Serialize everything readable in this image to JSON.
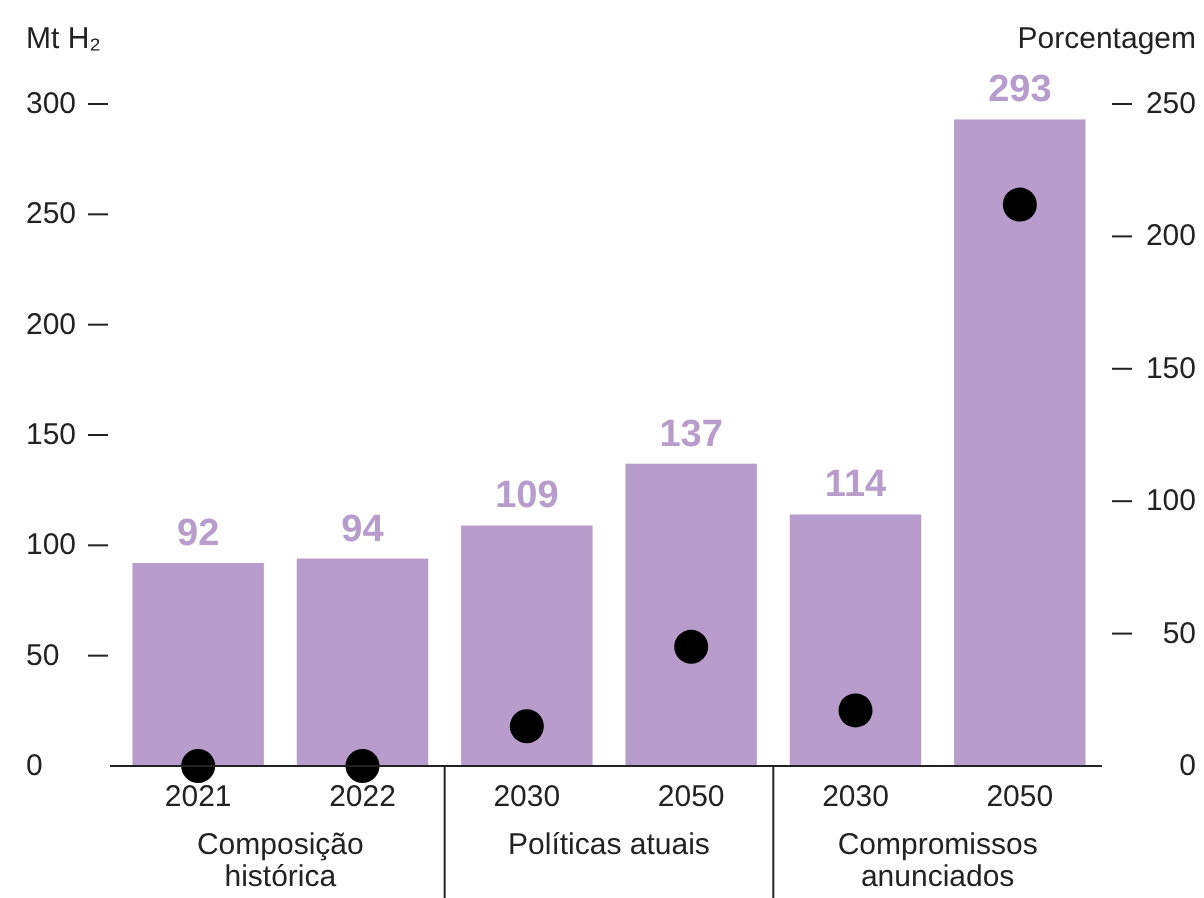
{
  "chart_data": {
    "type": "bar",
    "ylabel": "Mt H₂",
    "y2label": "Porcentagem",
    "categories": [
      "2021",
      "2022",
      "2030",
      "2050",
      "2030",
      "2050"
    ],
    "series": [
      {
        "type": "bar",
        "color": "#b89ccb",
        "values": [
          92,
          94,
          109,
          137,
          114,
          293
        ],
        "value_labels": [
          "92",
          "94",
          "109",
          "137",
          "114",
          "293"
        ]
      },
      {
        "type": "scatter",
        "color": "#000000",
        "axis": "y2",
        "values": [
          0,
          0,
          15,
          45,
          21,
          212
        ]
      }
    ],
    "ylim": [
      0,
      300
    ],
    "yticks": [
      0,
      50,
      100,
      150,
      200,
      250,
      300
    ],
    "y2lim": [
      0,
      250
    ],
    "y2ticks": [
      0,
      50,
      100,
      150,
      200,
      250
    ],
    "marker": "circle",
    "grid": false,
    "annotations": [
      "Composição histórica",
      "Políticas atuais",
      "Compromissos anunciados"
    ]
  }
}
